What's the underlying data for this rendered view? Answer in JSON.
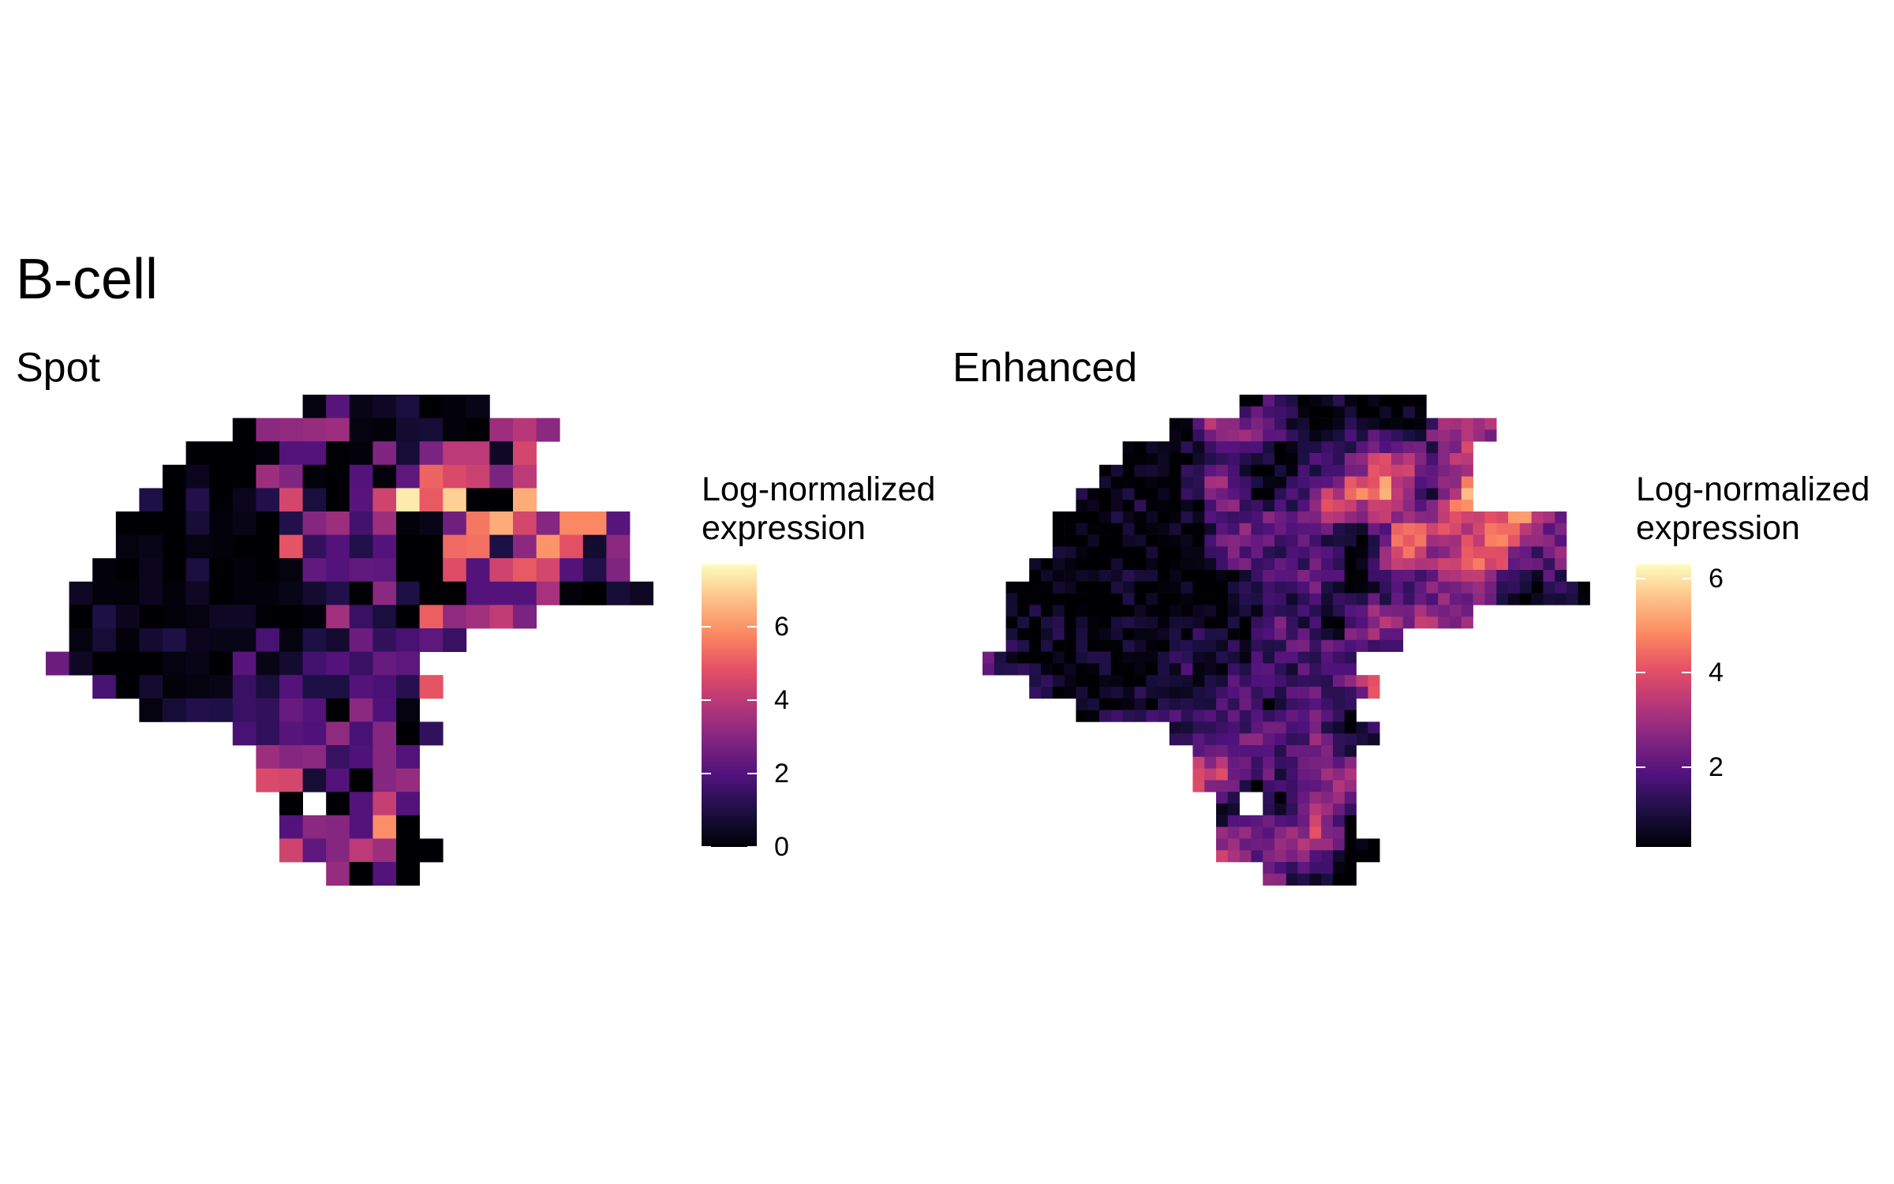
{
  "title": "B-cell",
  "chart_data": [
    {
      "type": "heatmap",
      "title": "Spot",
      "legend": {
        "title_lines": [
          "Log-normalized",
          "expression"
        ],
        "ticks": [
          0,
          2,
          4,
          6
        ],
        "range": [
          0,
          7.7
        ],
        "placement": "right"
      },
      "colormap": "magma",
      "grid": {
        "cols": 26,
        "rows": 21
      },
      "rows": [
        [
          11,
          2,
          21,
          3,
          5,
          9,
          0,
          1,
          3
        ],
        [
          8,
          0,
          31,
          32,
          33,
          34,
          2,
          1,
          7,
          8,
          1,
          0,
          34,
          39,
          31
        ],
        [
          6,
          0,
          0,
          0,
          1,
          20,
          20,
          0,
          1,
          29,
          8,
          28,
          40,
          40,
          5,
          45
        ],
        [
          5,
          0,
          4,
          0,
          0,
          34,
          29,
          1,
          0,
          20,
          1,
          22,
          52,
          46,
          43,
          28,
          40
        ],
        [
          4,
          10,
          0,
          11,
          0,
          4,
          11,
          45,
          9,
          0,
          21,
          44,
          74,
          50,
          70,
          0,
          0,
          64
        ],
        [
          3,
          0,
          0,
          0,
          8,
          1,
          3,
          0,
          11,
          30,
          34,
          17,
          34,
          1,
          3,
          26,
          55,
          64,
          45,
          30,
          58,
          58,
          21
        ],
        [
          3,
          2,
          3,
          0,
          2,
          1,
          0,
          0,
          49,
          14,
          20,
          11,
          20,
          0,
          0,
          53,
          54,
          10,
          31,
          60,
          48,
          7,
          31
        ],
        [
          2,
          1,
          0,
          4,
          0,
          9,
          0,
          1,
          0,
          2,
          23,
          20,
          23,
          22,
          0,
          0,
          47,
          20,
          44,
          50,
          45,
          20,
          11,
          29
        ],
        [
          1,
          5,
          1,
          1,
          4,
          1,
          5,
          0,
          1,
          1,
          3,
          7,
          11,
          0,
          31,
          10,
          0,
          0,
          20,
          20,
          20,
          36,
          1,
          0,
          8,
          5
        ],
        [
          1,
          0,
          10,
          4,
          0,
          1,
          2,
          5,
          5,
          0,
          0,
          1,
          35,
          15,
          9,
          0,
          51,
          32,
          35,
          41,
          28
        ],
        [
          1,
          2,
          8,
          1,
          7,
          10,
          4,
          3,
          3,
          18,
          2,
          10,
          7,
          25,
          14,
          18,
          22,
          15
        ],
        [
          0,
          25,
          5,
          0,
          0,
          0,
          2,
          3,
          0,
          21,
          3,
          7,
          17,
          20,
          15,
          24,
          22
        ],
        [
          2,
          18,
          0,
          7,
          1,
          2,
          3,
          15,
          9,
          20,
          10,
          10,
          20,
          18,
          12,
          49
        ],
        [
          4,
          2,
          8,
          11,
          10,
          15,
          14,
          24,
          20,
          0,
          31,
          19,
          2
        ],
        [
          8,
          18,
          14,
          21,
          19,
          32,
          18,
          30,
          0,
          14
        ],
        [
          9,
          34,
          30,
          31,
          15,
          19,
          30,
          20
        ],
        [
          9,
          46,
          45,
          8,
          20,
          0,
          30,
          33
        ],
        [
          10,
          0,
          null,
          0,
          20,
          42,
          20
        ],
        [
          10,
          20,
          31,
          30,
          20,
          59,
          0
        ],
        [
          10,
          44,
          22,
          30,
          40,
          34,
          0,
          0
        ],
        [
          12,
          33,
          0,
          20,
          0
        ]
      ]
    },
    {
      "type": "heatmap",
      "title": "Enhanced",
      "legend": {
        "title_lines": [
          "Log-normalized",
          "expression"
        ],
        "ticks": [
          2,
          4,
          6
        ],
        "range": [
          0.3,
          6.3
        ],
        "placement": "right"
      },
      "colormap": "magma",
      "grid": {
        "cols": 52,
        "rows": 42
      },
      "source": "upsampled-from-spot"
    }
  ]
}
